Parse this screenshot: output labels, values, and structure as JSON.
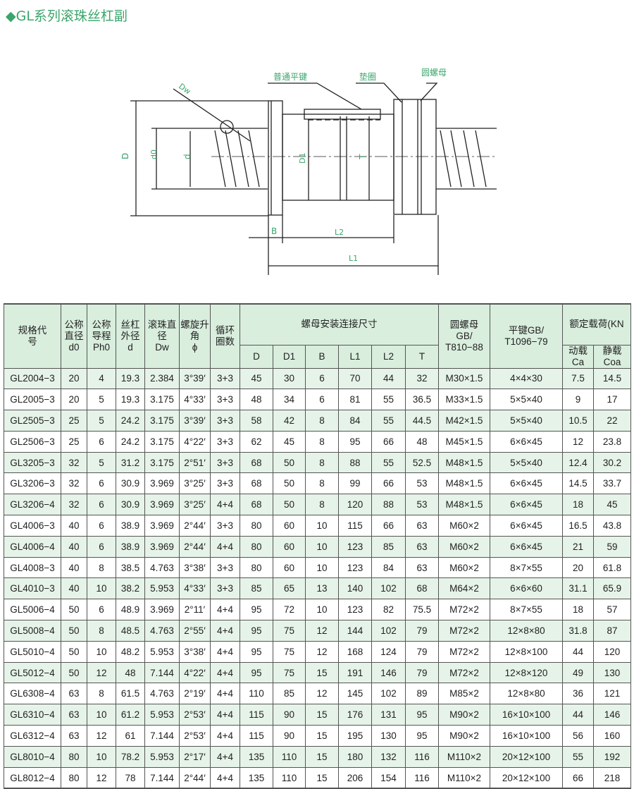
{
  "title": "◆GL系列滚珠丝杠副",
  "diagram": {
    "labels": {
      "key": "普通平键",
      "washer": "垫圈",
      "round_nut": "圆螺母",
      "Dw": "Dw",
      "D": "D",
      "d0": "d0",
      "d": "d",
      "D1": "D1",
      "T": "T",
      "B": "B",
      "L2": "L2",
      "L1": "L1"
    }
  },
  "table": {
    "headers": {
      "model": "规格代号",
      "d0": [
        "公称直径",
        "d0"
      ],
      "ph0": [
        "公称导程",
        "Ph0"
      ],
      "d": [
        "丝杠外径",
        "d"
      ],
      "dw": [
        "滚珠直径",
        "Dw"
      ],
      "phi": [
        "螺旋升角",
        "ϕ"
      ],
      "circuits": "循环圈数",
      "mount_group": "螺母安装连接尺寸",
      "mount_cols": [
        "D",
        "D1",
        "B",
        "L1",
        "L2",
        "T"
      ],
      "round_nut": [
        "圆螺母",
        "GB/",
        "T810−88"
      ],
      "key": [
        "平键GB/",
        "T1096−79"
      ],
      "load_group": "额定载荷(KN",
      "ca": [
        "动载",
        "Ca"
      ],
      "coa": [
        "静载",
        "Coa"
      ]
    },
    "rows": [
      [
        "GL2004−3",
        "20",
        "4",
        "19.3",
        "2.384",
        "3°39′",
        "3+3",
        "45",
        "30",
        "6",
        "70",
        "44",
        "32",
        "M30×1.5",
        "4×4×30",
        "7.5",
        "14.5"
      ],
      [
        "GL2005−3",
        "20",
        "5",
        "19.3",
        "3.175",
        "4°33′",
        "3+3",
        "48",
        "34",
        "6",
        "81",
        "55",
        "36.5",
        "M33×1.5",
        "5×5×40",
        "9",
        "17"
      ],
      [
        "GL2505−3",
        "25",
        "5",
        "24.2",
        "3.175",
        "3°39′",
        "3+3",
        "58",
        "42",
        "8",
        "84",
        "55",
        "44.5",
        "M42×1.5",
        "5×5×40",
        "10.5",
        "22"
      ],
      [
        "GL2506−3",
        "25",
        "6",
        "24.2",
        "3.175",
        "4°22′",
        "3+3",
        "62",
        "45",
        "8",
        "95",
        "66",
        "48",
        "M45×1.5",
        "6×6×45",
        "12",
        "23.8"
      ],
      [
        "GL3205−3",
        "32",
        "5",
        "31.2",
        "3.175",
        "2°51′",
        "3+3",
        "68",
        "50",
        "8",
        "88",
        "55",
        "52.5",
        "M48×1.5",
        "5×5×40",
        "12.4",
        "30.2"
      ],
      [
        "GL3206−3",
        "32",
        "6",
        "30.9",
        "3.969",
        "3°25′",
        "3+3",
        "68",
        "50",
        "8",
        "99",
        "66",
        "53",
        "M48×1.5",
        "6×6×45",
        "14.5",
        "33.7"
      ],
      [
        "GL3206−4",
        "32",
        "6",
        "30.9",
        "3.969",
        "3°25′",
        "4+4",
        "68",
        "50",
        "8",
        "120",
        "88",
        "53",
        "M48×1.5",
        "6×6×45",
        "18",
        "45"
      ],
      [
        "GL4006−3",
        "40",
        "6",
        "38.9",
        "3.969",
        "2°44′",
        "3+3",
        "80",
        "60",
        "10",
        "115",
        "66",
        "63",
        "M60×2",
        "6×6×45",
        "16.5",
        "43.8"
      ],
      [
        "GL4006−4",
        "40",
        "6",
        "38.9",
        "3.969",
        "2°44′",
        "4+4",
        "80",
        "60",
        "10",
        "123",
        "85",
        "63",
        "M60×2",
        "6×6×45",
        "21",
        "59"
      ],
      [
        "GL4008−3",
        "40",
        "8",
        "38.5",
        "4.763",
        "3°38′",
        "3+3",
        "80",
        "60",
        "10",
        "123",
        "84",
        "63",
        "M60×2",
        "8×7×55",
        "20",
        "61.8"
      ],
      [
        "GL4010−3",
        "40",
        "10",
        "38.2",
        "5.953",
        "4°33′",
        "3+3",
        "85",
        "65",
        "13",
        "140",
        "102",
        "68",
        "M64×2",
        "6×6×60",
        "31.1",
        "65.9"
      ],
      [
        "GL5006−4",
        "50",
        "6",
        "48.9",
        "3.969",
        "2°11′",
        "4+4",
        "95",
        "72",
        "10",
        "123",
        "82",
        "75.5",
        "M72×2",
        "8×7×55",
        "18",
        "57"
      ],
      [
        "GL5008−4",
        "50",
        "8",
        "48.5",
        "4.763",
        "2°55′",
        "4+4",
        "95",
        "75",
        "12",
        "144",
        "102",
        "79",
        "M72×2",
        "12×8×80",
        "31.8",
        "87"
      ],
      [
        "GL5010−4",
        "50",
        "10",
        "48.2",
        "5.953",
        "3°38′",
        "4+4",
        "95",
        "75",
        "12",
        "168",
        "124",
        "79",
        "M72×2",
        "12×8×100",
        "44",
        "120"
      ],
      [
        "GL5012−4",
        "50",
        "12",
        "48",
        "7.144",
        "4°22′",
        "4+4",
        "95",
        "75",
        "15",
        "191",
        "146",
        "79",
        "M72×2",
        "12×8×120",
        "49",
        "130"
      ],
      [
        "GL6308−4",
        "63",
        "8",
        "61.5",
        "4.763",
        "2°19′",
        "4+4",
        "110",
        "85",
        "12",
        "145",
        "102",
        "89",
        "M85×2",
        "12×8×80",
        "36",
        "121"
      ],
      [
        "GL6310−4",
        "63",
        "10",
        "61.2",
        "5.953",
        "2°53′",
        "4+4",
        "115",
        "90",
        "15",
        "176",
        "131",
        "95",
        "M90×2",
        "16×10×100",
        "44",
        "146"
      ],
      [
        "GL6312−4",
        "63",
        "12",
        "61",
        "7.144",
        "2°53′",
        "4+4",
        "115",
        "90",
        "15",
        "195",
        "130",
        "95",
        "M90×2",
        "16×10×100",
        "56",
        "160"
      ],
      [
        "GL8010−4",
        "80",
        "10",
        "78.2",
        "5.953",
        "2°17′",
        "4+4",
        "135",
        "110",
        "15",
        "180",
        "132",
        "116",
        "M110×2",
        "20×12×100",
        "55",
        "192"
      ],
      [
        "GL8012−4",
        "80",
        "12",
        "78",
        "7.144",
        "2°44′",
        "4+4",
        "135",
        "110",
        "15",
        "206",
        "154",
        "116",
        "M110×2",
        "20×12×100",
        "66",
        "218"
      ]
    ]
  }
}
